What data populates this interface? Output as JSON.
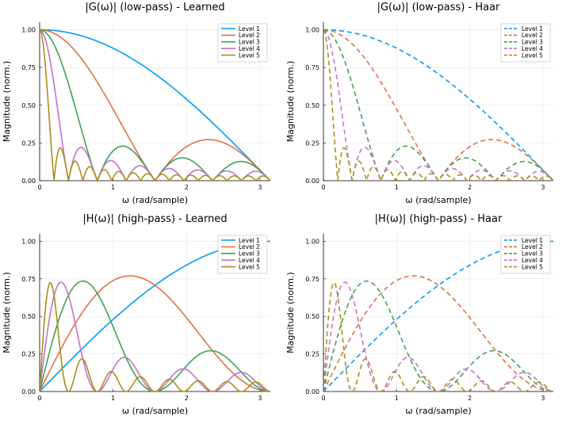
{
  "chart_data": [
    {
      "type": "line",
      "title": "|G(ω)| (low-pass) - Learned",
      "xlabel": "ω (rad/sample)",
      "ylabel": "Magnitude (norm.)",
      "xlim": [
        0,
        3.14159
      ],
      "ylim": [
        0,
        1.05
      ],
      "xticks": [
        0,
        1,
        2,
        3
      ],
      "yticks": [
        "0.00",
        "0.25",
        "0.50",
        "0.75",
        "1.00"
      ],
      "line_style": "solid",
      "legend_position": "top-right",
      "series": [
        {
          "name": "Level 1",
          "color": "#009AFA",
          "kind": "low",
          "level": 1
        },
        {
          "name": "Level 2",
          "color": "#E36F47",
          "kind": "low",
          "level": 2
        },
        {
          "name": "Level 3",
          "color": "#3EA44E",
          "kind": "low",
          "level": 3
        },
        {
          "name": "Level 4",
          "color": "#C371D2",
          "kind": "low",
          "level": 4
        },
        {
          "name": "Level 5",
          "color": "#AC8E18",
          "kind": "low",
          "level": 5
        }
      ]
    },
    {
      "type": "line",
      "title": "|G(ω)| (low-pass) - Haar",
      "xlabel": "ω (rad/sample)",
      "ylabel": "Magnitude (norm.)",
      "xlim": [
        0,
        3.14159
      ],
      "ylim": [
        0,
        1.05
      ],
      "xticks": [
        0,
        1,
        2,
        3
      ],
      "yticks": [
        "0.00",
        "0.25",
        "0.50",
        "0.75",
        "1.00"
      ],
      "line_style": "dashed",
      "legend_position": "top-right",
      "series": [
        {
          "name": "Level 1",
          "color": "#009AFA",
          "kind": "low",
          "level": 1
        },
        {
          "name": "Level 2",
          "color": "#E36F47",
          "kind": "low",
          "level": 2
        },
        {
          "name": "Level 3",
          "color": "#3EA44E",
          "kind": "low",
          "level": 3
        },
        {
          "name": "Level 4",
          "color": "#C371D2",
          "kind": "low",
          "level": 4
        },
        {
          "name": "Level 5",
          "color": "#AC8E18",
          "kind": "low",
          "level": 5
        }
      ]
    },
    {
      "type": "line",
      "title": "|H(ω)| (high-pass) - Learned",
      "xlabel": "ω (rad/sample)",
      "ylabel": "Magnitude (norm.)",
      "xlim": [
        0,
        3.14159
      ],
      "ylim": [
        0,
        1.05
      ],
      "xticks": [
        0,
        1,
        2,
        3
      ],
      "yticks": [
        "0.00",
        "0.25",
        "0.50",
        "0.75",
        "1.00"
      ],
      "line_style": "solid",
      "legend_position": "top-right",
      "series": [
        {
          "name": "Level 1",
          "color": "#009AFA",
          "kind": "high",
          "level": 1
        },
        {
          "name": "Level 2",
          "color": "#E36F47",
          "kind": "high",
          "level": 2
        },
        {
          "name": "Level 3",
          "color": "#3EA44E",
          "kind": "high",
          "level": 3
        },
        {
          "name": "Level 4",
          "color": "#C371D2",
          "kind": "high",
          "level": 4
        },
        {
          "name": "Level 5",
          "color": "#AC8E18",
          "kind": "high",
          "level": 5
        }
      ]
    },
    {
      "type": "line",
      "title": "|H(ω)| (high-pass) - Haar",
      "xlabel": "ω (rad/sample)",
      "ylabel": "Magnitude (norm.)",
      "xlim": [
        0,
        3.14159
      ],
      "ylim": [
        0,
        1.05
      ],
      "xticks": [
        0,
        1,
        2,
        3
      ],
      "yticks": [
        "0.00",
        "0.25",
        "0.50",
        "0.75",
        "1.00"
      ],
      "line_style": "dashed",
      "legend_position": "top-right",
      "series": [
        {
          "name": "Level 1",
          "color": "#009AFA",
          "kind": "high",
          "level": 1
        },
        {
          "name": "Level 2",
          "color": "#E36F47",
          "kind": "high",
          "level": 2
        },
        {
          "name": "Level 3",
          "color": "#3EA44E",
          "kind": "high",
          "level": 3
        },
        {
          "name": "Level 4",
          "color": "#C371D2",
          "kind": "high",
          "level": 4
        },
        {
          "name": "Level 5",
          "color": "#AC8E18",
          "kind": "high",
          "level": 5
        }
      ]
    }
  ]
}
